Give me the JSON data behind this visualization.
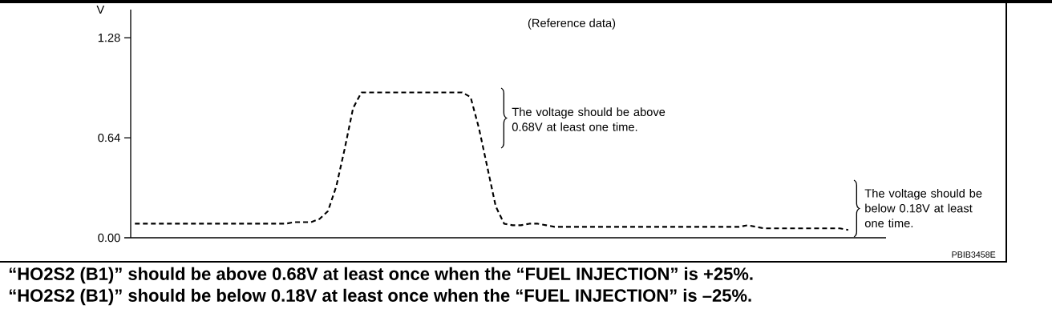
{
  "chart_data": {
    "type": "line",
    "title": "(Reference data)",
    "ylabel": "V",
    "categories": [
      null,
      null,
      null,
      null,
      null,
      null,
      null,
      null,
      null,
      null,
      null,
      null,
      null,
      null,
      null,
      null,
      null,
      null,
      null,
      null,
      null,
      null,
      null,
      null,
      null,
      null,
      null,
      null,
      null,
      null,
      null,
      null,
      null,
      null,
      null,
      null,
      null,
      null,
      null,
      null,
      null,
      null,
      null,
      null,
      null,
      null,
      null,
      null,
      null,
      null,
      null,
      null,
      null,
      null,
      null,
      null,
      null,
      null,
      null,
      null,
      null,
      null,
      null,
      null,
      null,
      null,
      null,
      null,
      null,
      null,
      null,
      null,
      null,
      null,
      null,
      null,
      null,
      null,
      null,
      null,
      null,
      null,
      null,
      null,
      null,
      null,
      null,
      null,
      null,
      null
    ],
    "series": [
      {
        "color": "#000000",
        "values": [
          0.09,
          0.09,
          0.09,
          0.09,
          0.09,
          0.09,
          0.09,
          0.09,
          0.09,
          0.09,
          0.09,
          0.09,
          0.09,
          0.09,
          0.09,
          0.09,
          0.09,
          0.09,
          0.09,
          0.1,
          0.1,
          0.1,
          0.12,
          0.17,
          0.33,
          0.57,
          0.83,
          0.93,
          0.93,
          0.93,
          0.93,
          0.93,
          0.93,
          0.93,
          0.93,
          0.93,
          0.93,
          0.93,
          0.93,
          0.93,
          0.9,
          0.7,
          0.45,
          0.2,
          0.09,
          0.08,
          0.08,
          0.09,
          0.09,
          0.08,
          0.07,
          0.07,
          0.07,
          0.07,
          0.07,
          0.07,
          0.07,
          0.07,
          0.07,
          0.07,
          0.07,
          0.07,
          0.07,
          0.07,
          0.07,
          0.07,
          0.07,
          0.07,
          0.07,
          0.07,
          0.07,
          0.07,
          0.07,
          0.08,
          0.07,
          0.06,
          0.06,
          0.06,
          0.06,
          0.06,
          0.06,
          0.06,
          0.06,
          0.06,
          0.06,
          0.05,
          null,
          null,
          null,
          null
        ]
      }
    ],
    "ylim": [
      0,
      1.46
    ],
    "yticks": [
      {
        "value": 0,
        "label": "0.00"
      },
      0.64,
      1.28
    ],
    "line_style": "dashed",
    "marker": "none",
    "grid": false,
    "annotations": [
      "The voltage should be above 0.68V at least one time.",
      "The voltage should be below 0.18V at least one time.",
      "PBIB3458E",
      "“HO2S2 (B1)” should be above 0.68V at least once when the “FUEL INJECTION” is +25%.",
      "“HO2S2 (B1)” should be below 0.18V at least once when the “FUEL INJECTION” is –25%."
    ]
  }
}
